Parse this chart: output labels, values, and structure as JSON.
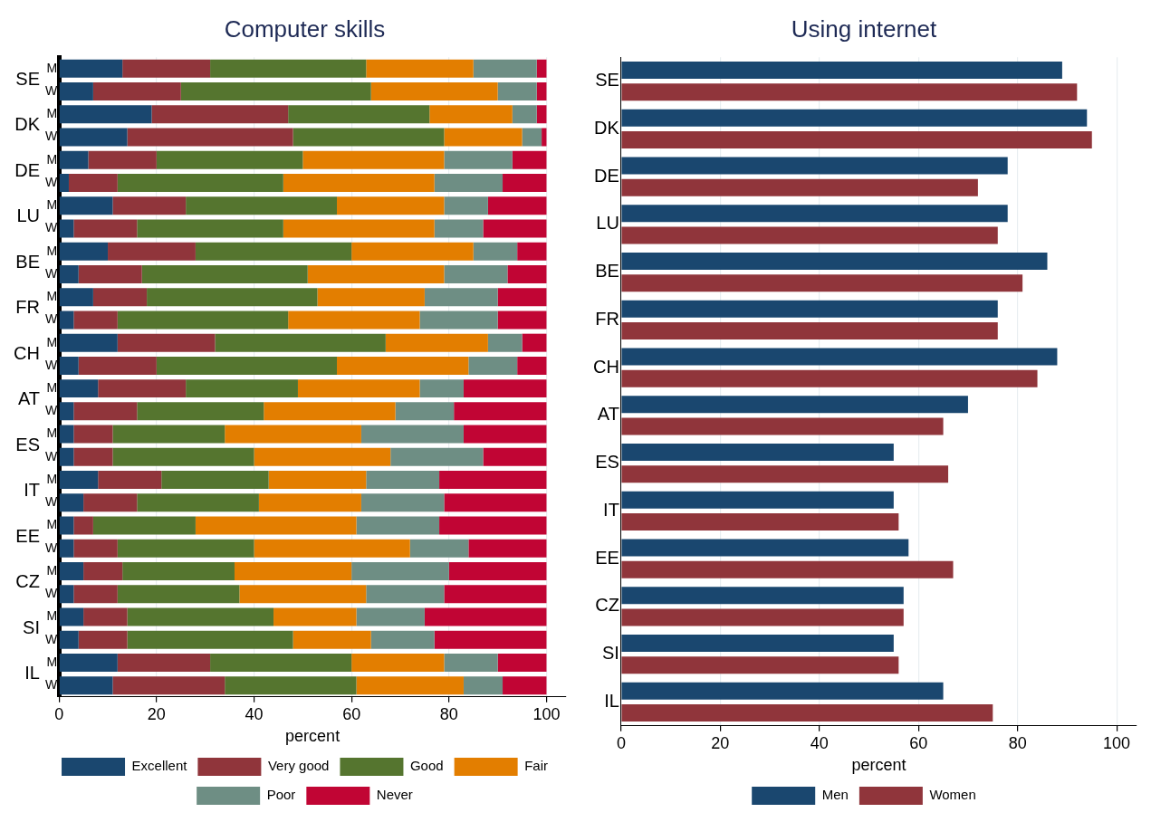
{
  "chart_data": [
    {
      "type": "bar",
      "title": "Computer skills",
      "orientation": "horizontal",
      "stacked": true,
      "categories": [
        "M",
        "W",
        "M",
        "W",
        "M",
        "W",
        "M",
        "W",
        "M",
        "W",
        "M",
        "W",
        "M",
        "W",
        "M",
        "W",
        "M",
        "W",
        "M",
        "W",
        "M",
        "W",
        "M",
        "W",
        "M",
        "W",
        "M",
        "W"
      ],
      "annotations": [
        "SE",
        "DK",
        "DE",
        "LU",
        "BE",
        "FR",
        "CH",
        "AT",
        "ES",
        "IT",
        "EE",
        "CZ",
        "SI",
        "IL"
      ],
      "xlabel": "percent",
      "xlim": [
        0,
        104
      ],
      "xticks": [
        0,
        20,
        40,
        60,
        80,
        100
      ],
      "grid": "x",
      "legend": "bottom",
      "series": [
        {
          "name": "Excellent",
          "color": "#1a476f",
          "values": [
            13,
            7,
            19,
            14,
            6,
            2,
            11,
            3,
            10,
            4,
            7,
            3,
            12,
            4,
            8,
            3,
            3,
            3,
            8,
            5,
            3,
            3,
            5,
            3,
            5,
            4,
            12,
            11
          ]
        },
        {
          "name": "Very good",
          "color": "#90353b",
          "values": [
            18,
            18,
            28,
            34,
            14,
            10,
            15,
            13,
            18,
            13,
            11,
            9,
            20,
            16,
            18,
            13,
            8,
            8,
            13,
            11,
            4,
            9,
            8,
            9,
            9,
            10,
            19,
            23
          ]
        },
        {
          "name": "Good",
          "color": "#55752f",
          "values": [
            32,
            39,
            29,
            31,
            30,
            34,
            31,
            30,
            32,
            34,
            35,
            35,
            35,
            37,
            23,
            26,
            23,
            29,
            22,
            25,
            21,
            28,
            23,
            25,
            30,
            34,
            29,
            27
          ]
        },
        {
          "name": "Fair",
          "color": "#e37e00",
          "values": [
            22,
            26,
            17,
            16,
            29,
            31,
            22,
            31,
            25,
            28,
            22,
            27,
            21,
            27,
            25,
            27,
            28,
            28,
            20,
            21,
            33,
            32,
            24,
            26,
            17,
            16,
            19,
            22
          ]
        },
        {
          "name": "Poor",
          "color": "#6e8e84",
          "values": [
            13,
            8,
            5,
            4,
            14,
            14,
            9,
            10,
            9,
            13,
            15,
            16,
            7,
            10,
            9,
            12,
            21,
            19,
            15,
            17,
            17,
            12,
            20,
            16,
            14,
            13,
            11,
            8
          ]
        },
        {
          "name": "Never",
          "color": "#c10534",
          "values": [
            2,
            2,
            2,
            1,
            7,
            9,
            12,
            13,
            6,
            8,
            10,
            10,
            5,
            6,
            17,
            19,
            17,
            13,
            22,
            21,
            22,
            16,
            20,
            21,
            25,
            23,
            10,
            9
          ]
        }
      ]
    },
    {
      "type": "bar",
      "title": "Using internet",
      "orientation": "horizontal",
      "categories": [
        "SE",
        "DK",
        "DE",
        "LU",
        "BE",
        "FR",
        "CH",
        "AT",
        "ES",
        "IT",
        "EE",
        "CZ",
        "SI",
        "IL"
      ],
      "xlabel": "percent",
      "xlim": [
        0,
        104
      ],
      "xticks": [
        0,
        20,
        40,
        60,
        80,
        100
      ],
      "grid": "x",
      "legend": "bottom",
      "series": [
        {
          "name": "Men",
          "color": "#1a476f",
          "values": [
            89,
            94,
            78,
            78,
            86,
            76,
            88,
            70,
            55,
            55,
            58,
            57,
            55,
            65
          ]
        },
        {
          "name": "Women",
          "color": "#90353b",
          "values": [
            92,
            95,
            72,
            76,
            81,
            76,
            84,
            65,
            66,
            56,
            67,
            57,
            56,
            75
          ]
        }
      ]
    }
  ]
}
